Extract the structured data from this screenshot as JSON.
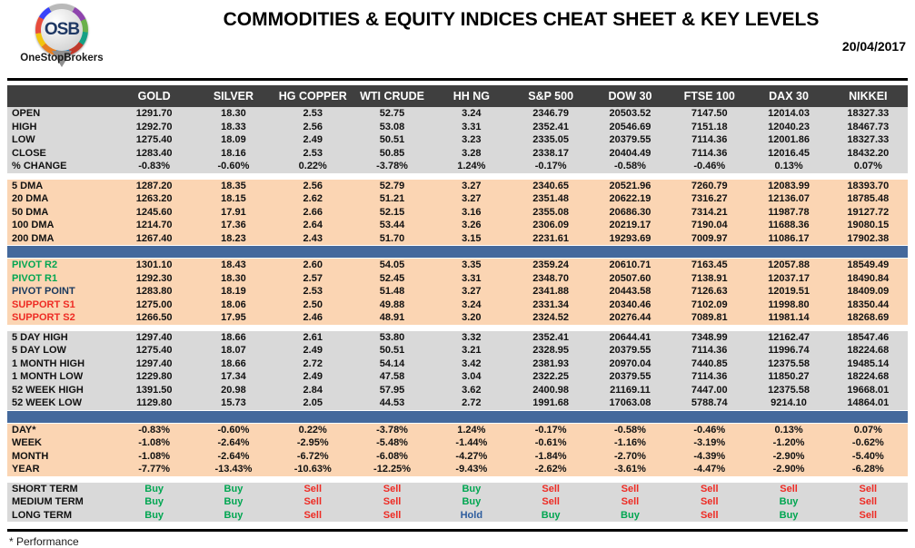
{
  "colors": {
    "green": "#00a651",
    "red": "#ee2b24",
    "navy": "#17375d",
    "hold_blue": "#2e5d9e",
    "bar_blue": "#44699c",
    "peach": "#fbd5b3",
    "gray": "#d9d9d9",
    "header_bg": "#3f3f3f"
  },
  "header": {
    "title": "COMMODITIES & EQUITY INDICES CHEAT SHEET & KEY LEVELS",
    "date": "20/04/2017",
    "logo_text": "OSB",
    "logo_subtext": "OneStopBrokers"
  },
  "table": {
    "columns": [
      "GOLD",
      "SILVER",
      "HG COPPER",
      "WTI CRUDE",
      "HH NG",
      "S&P 500",
      "DOW 30",
      "FTSE 100",
      "DAX 30",
      "NIKKEI"
    ],
    "sections": [
      {
        "id": "ohlc",
        "bg": "gray",
        "after": "gap",
        "rows": [
          {
            "label": "OPEN",
            "values": [
              "1291.70",
              "18.30",
              "2.53",
              "52.75",
              "3.24",
              "2346.79",
              "20503.52",
              "7147.50",
              "12014.03",
              "18327.33"
            ]
          },
          {
            "label": "HIGH",
            "values": [
              "1292.70",
              "18.33",
              "2.56",
              "53.08",
              "3.31",
              "2352.41",
              "20546.69",
              "7151.18",
              "12040.23",
              "18467.73"
            ]
          },
          {
            "label": "LOW",
            "values": [
              "1275.40",
              "18.09",
              "2.49",
              "50.51",
              "3.23",
              "2335.05",
              "20379.55",
              "7114.36",
              "12001.86",
              "18327.33"
            ]
          },
          {
            "label": "CLOSE",
            "values": [
              "1283.40",
              "18.16",
              "2.53",
              "50.85",
              "3.28",
              "2338.17",
              "20404.49",
              "7114.36",
              "12016.45",
              "18432.20"
            ]
          },
          {
            "label": "% CHANGE",
            "values": [
              "-0.83%",
              "-0.60%",
              "0.22%",
              "-3.78%",
              "1.24%",
              "-0.17%",
              "-0.58%",
              "-0.46%",
              "0.13%",
              "0.07%"
            ]
          }
        ]
      },
      {
        "id": "dma",
        "bg": "peach",
        "after": "bar",
        "rows": [
          {
            "label": "5 DMA",
            "values": [
              "1287.20",
              "18.35",
              "2.56",
              "52.79",
              "3.27",
              "2340.65",
              "20521.96",
              "7260.79",
              "12083.99",
              "18393.70"
            ]
          },
          {
            "label": "20 DMA",
            "values": [
              "1263.20",
              "18.15",
              "2.62",
              "51.21",
              "3.27",
              "2351.48",
              "20622.19",
              "7316.27",
              "12136.07",
              "18785.48"
            ]
          },
          {
            "label": "50 DMA",
            "values": [
              "1245.60",
              "17.91",
              "2.66",
              "52.15",
              "3.16",
              "2355.08",
              "20686.30",
              "7314.21",
              "11987.78",
              "19127.72"
            ]
          },
          {
            "label": "100 DMA",
            "values": [
              "1214.70",
              "17.36",
              "2.64",
              "53.44",
              "3.26",
              "2306.09",
              "20219.17",
              "7190.04",
              "11688.36",
              "19080.15"
            ]
          },
          {
            "label": "200 DMA",
            "values": [
              "1267.40",
              "18.23",
              "2.43",
              "51.70",
              "3.15",
              "2231.61",
              "19293.69",
              "7009.97",
              "11086.17",
              "17902.38"
            ]
          }
        ]
      },
      {
        "id": "pivots",
        "bg": "peach",
        "after": "gap",
        "rows": [
          {
            "label": "PIVOT R2",
            "label_color": "green",
            "values": [
              "1301.10",
              "18.43",
              "2.60",
              "54.05",
              "3.35",
              "2359.24",
              "20610.71",
              "7163.45",
              "12057.88",
              "18549.49"
            ]
          },
          {
            "label": "PIVOT R1",
            "label_color": "green",
            "values": [
              "1292.30",
              "18.30",
              "2.57",
              "52.45",
              "3.31",
              "2348.70",
              "20507.60",
              "7138.91",
              "12037.17",
              "18490.84"
            ]
          },
          {
            "label": "PIVOT POINT",
            "label_color": "navy",
            "values": [
              "1283.80",
              "18.19",
              "2.53",
              "51.48",
              "3.27",
              "2341.88",
              "20443.58",
              "7126.63",
              "12019.51",
              "18409.09"
            ]
          },
          {
            "label": "SUPPORT S1",
            "label_color": "red",
            "values": [
              "1275.00",
              "18.06",
              "2.50",
              "49.88",
              "3.24",
              "2331.34",
              "20340.46",
              "7102.09",
              "11998.80",
              "18350.44"
            ]
          },
          {
            "label": "SUPPORT S2",
            "label_color": "red",
            "values": [
              "1266.50",
              "17.95",
              "2.46",
              "48.91",
              "3.20",
              "2324.52",
              "20276.44",
              "7089.81",
              "11981.14",
              "18268.69"
            ]
          }
        ]
      },
      {
        "id": "ranges",
        "bg": "gray",
        "after": "bar",
        "rows": [
          {
            "label": "5 DAY HIGH",
            "values": [
              "1297.40",
              "18.66",
              "2.61",
              "53.80",
              "3.32",
              "2352.41",
              "20644.41",
              "7348.99",
              "12162.47",
              "18547.46"
            ]
          },
          {
            "label": "5 DAY LOW",
            "values": [
              "1275.40",
              "18.07",
              "2.49",
              "50.51",
              "3.21",
              "2328.95",
              "20379.55",
              "7114.36",
              "11996.74",
              "18224.68"
            ]
          },
          {
            "label": "1 MONTH HIGH",
            "values": [
              "1297.40",
              "18.66",
              "2.72",
              "54.14",
              "3.42",
              "2381.93",
              "20970.04",
              "7440.85",
              "12375.58",
              "19485.14"
            ]
          },
          {
            "label": "1 MONTH LOW",
            "values": [
              "1229.80",
              "17.34",
              "2.49",
              "47.58",
              "3.04",
              "2322.25",
              "20379.55",
              "7114.36",
              "11850.27",
              "18224.68"
            ]
          },
          {
            "label": "52 WEEK HIGH",
            "values": [
              "1391.50",
              "20.98",
              "2.84",
              "57.95",
              "3.62",
              "2400.98",
              "21169.11",
              "7447.00",
              "12375.58",
              "19668.01"
            ]
          },
          {
            "label": "52 WEEK LOW",
            "values": [
              "1129.80",
              "15.73",
              "2.05",
              "44.53",
              "2.72",
              "1991.68",
              "17063.08",
              "5788.74",
              "9214.10",
              "14864.01"
            ]
          }
        ]
      },
      {
        "id": "performance",
        "bg": "peach",
        "after": "gap",
        "rows": [
          {
            "label": "DAY*",
            "values": [
              "-0.83%",
              "-0.60%",
              "0.22%",
              "-3.78%",
              "1.24%",
              "-0.17%",
              "-0.58%",
              "-0.46%",
              "0.13%",
              "0.07%"
            ]
          },
          {
            "label": "WEEK",
            "values": [
              "-1.08%",
              "-2.64%",
              "-2.95%",
              "-5.48%",
              "-1.44%",
              "-0.61%",
              "-1.16%",
              "-3.19%",
              "-1.20%",
              "-0.62%"
            ]
          },
          {
            "label": "MONTH",
            "values": [
              "-1.08%",
              "-2.64%",
              "-6.72%",
              "-6.08%",
              "-4.27%",
              "-1.84%",
              "-2.70%",
              "-4.39%",
              "-2.90%",
              "-5.40%"
            ]
          },
          {
            "label": "YEAR",
            "values": [
              "-7.77%",
              "-13.43%",
              "-10.63%",
              "-12.25%",
              "-9.43%",
              "-2.62%",
              "-3.61%",
              "-4.47%",
              "-2.90%",
              "-6.28%"
            ]
          }
        ]
      },
      {
        "id": "signals",
        "bg": "gray",
        "signals": true,
        "after": "none",
        "rows": [
          {
            "label": "SHORT TERM",
            "values": [
              "Buy",
              "Buy",
              "Sell",
              "Sell",
              "Buy",
              "Sell",
              "Sell",
              "Sell",
              "Sell",
              "Sell"
            ]
          },
          {
            "label": "MEDIUM TERM",
            "values": [
              "Buy",
              "Buy",
              "Sell",
              "Sell",
              "Buy",
              "Sell",
              "Sell",
              "Sell",
              "Buy",
              "Sell"
            ]
          },
          {
            "label": "LONG TERM",
            "values": [
              "Buy",
              "Buy",
              "Sell",
              "Sell",
              "Hold",
              "Buy",
              "Buy",
              "Sell",
              "Buy",
              "Sell"
            ]
          }
        ]
      }
    ]
  },
  "footnote": "* Performance"
}
